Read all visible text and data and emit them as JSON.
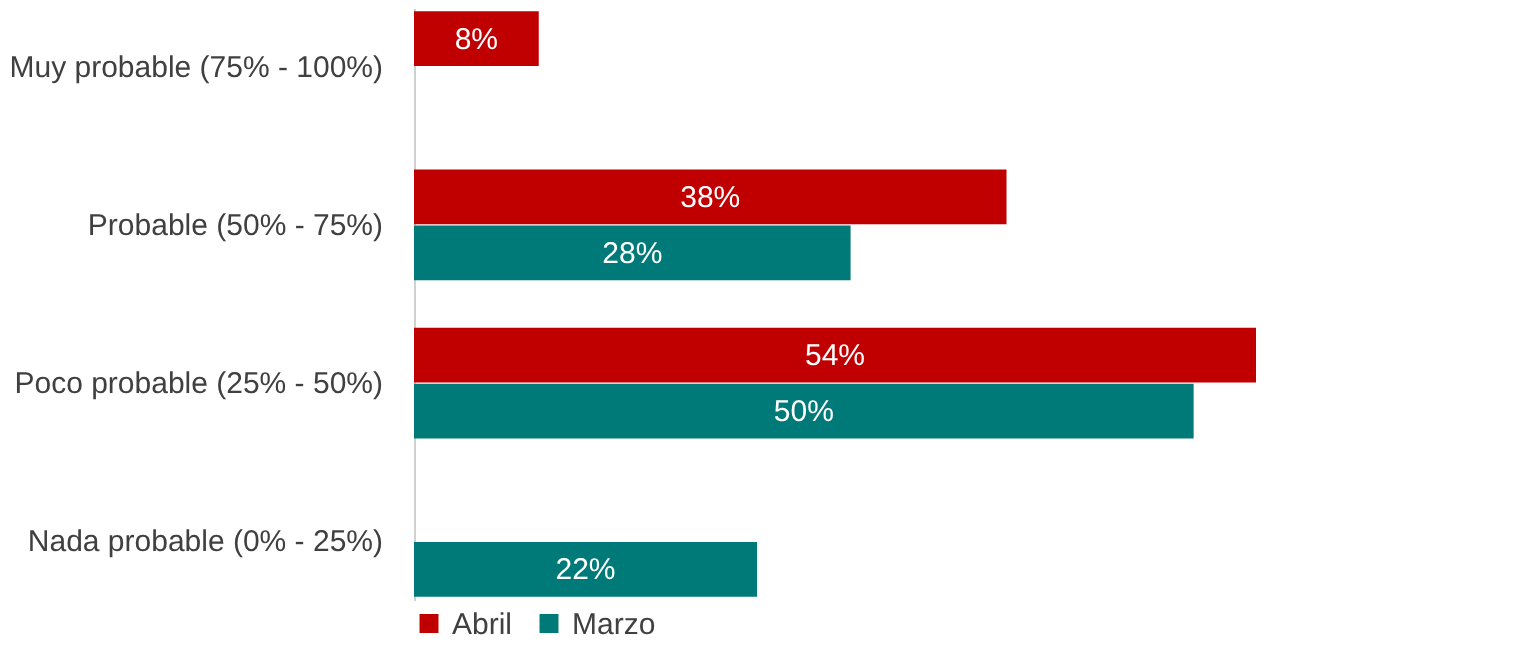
{
  "chart_data": {
    "type": "bar",
    "orientation": "horizontal",
    "categories": [
      "Muy probable (75% - 100%)",
      "Probable (50% - 75%)",
      "Poco probable (25% - 50%)",
      "Nada probable (0% - 25%)"
    ],
    "series": [
      {
        "name": "Abril",
        "color": "#c00000",
        "values": [
          8,
          38,
          54,
          null
        ],
        "value_labels": [
          "8%",
          "38%",
          "54%",
          null
        ]
      },
      {
        "name": "Marzo",
        "color": "#007a78",
        "values": [
          null,
          28,
          50,
          22
        ],
        "value_labels": [
          null,
          "28%",
          "50%",
          "22%"
        ]
      }
    ],
    "legend": "bottom",
    "grid": false
  }
}
